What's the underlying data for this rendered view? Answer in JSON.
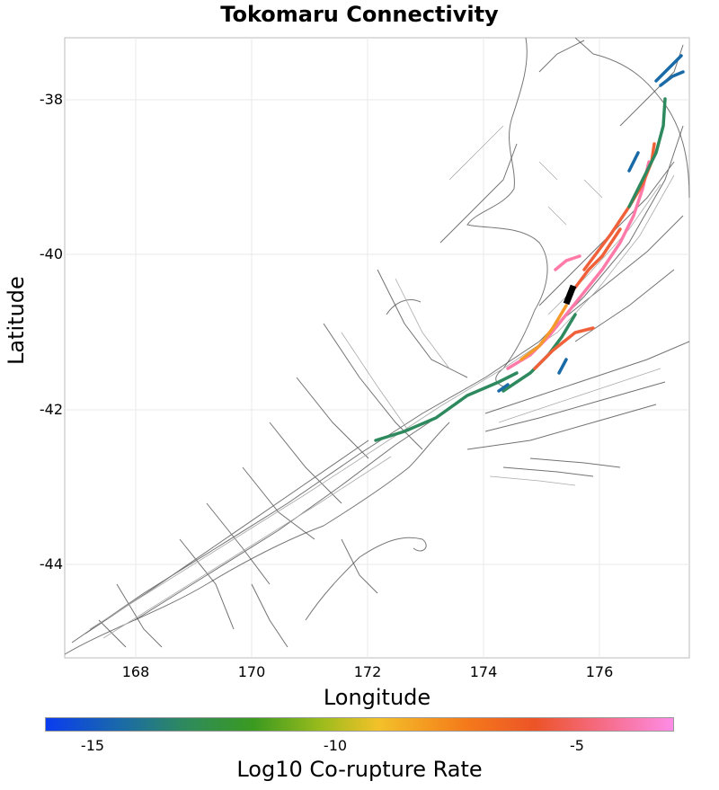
{
  "title": "Tokomaru Connectivity",
  "x_axis": {
    "label": "Longitude",
    "ticks": [
      "168",
      "170",
      "172",
      "174",
      "176"
    ]
  },
  "y_axis": {
    "label": "Latitude",
    "ticks": [
      "-38",
      "-40",
      "-42",
      "-44"
    ]
  },
  "colorbar": {
    "label": "Log10 Co-rupture Rate",
    "ticks": [
      "-15",
      "-10",
      "-5"
    ]
  },
  "colors": {
    "fault_line": "#333333",
    "coast_line": "#777777",
    "highlight": "#000000",
    "high": "#ff7aa8",
    "mid_high": "#f0613a",
    "mid": "#f59a2a",
    "low": "#2e8a5e",
    "very_low": "#1a6aa8"
  }
}
